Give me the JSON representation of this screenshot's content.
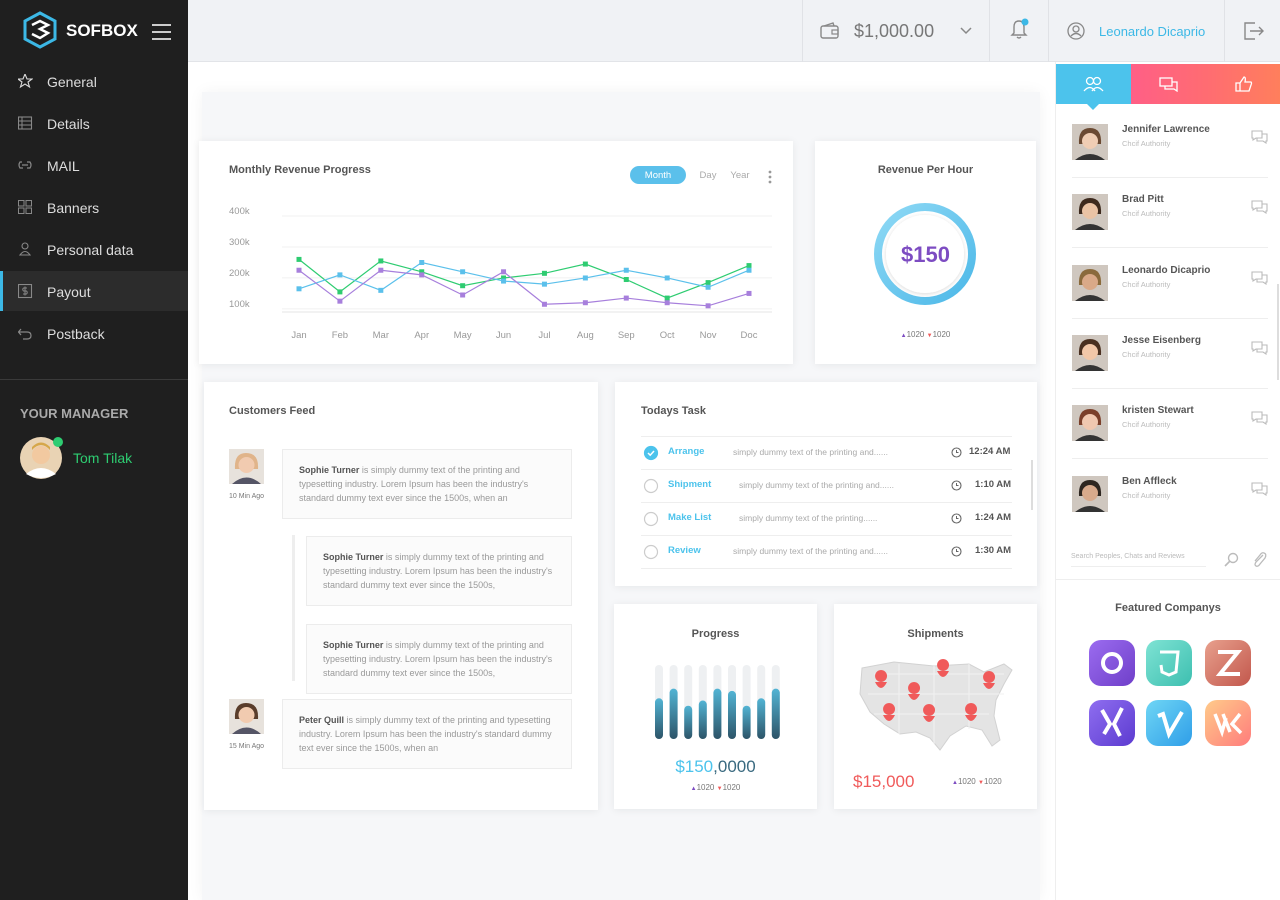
{
  "sidebar": {
    "brand": "SOFBOX",
    "menu": [
      "General",
      "Details",
      "MAIL",
      "Banners",
      "Personal data",
      "Payout",
      "Postback"
    ],
    "manager_heading": "YOUR MANAGER",
    "manager_name": "Tom Tilak"
  },
  "topbar": {
    "balance": "$1,000.00",
    "user": "Leonardo Dicaprio"
  },
  "chart_data": {
    "type": "line",
    "title": "Monthly Revenue Progress",
    "tabs": [
      "Month",
      "Day",
      "Year"
    ],
    "categories": [
      "Jan",
      "Feb",
      "Mar",
      "Apr",
      "May",
      "Jun",
      "Jul",
      "Aug",
      "Sep",
      "Oct",
      "Nov",
      "Doc"
    ],
    "ylim": [
      80000,
      400000
    ],
    "yticks": [
      {
        "value": 100000,
        "label": "100k"
      },
      {
        "value": 200000,
        "label": "200k"
      },
      {
        "value": 300000,
        "label": "300k"
      },
      {
        "value": 400000,
        "label": "400k"
      }
    ],
    "grid": true,
    "series": [
      {
        "color": "#2ecc71",
        "values": [
          250000,
          145000,
          245000,
          210000,
          165000,
          190000,
          205000,
          235000,
          185000,
          125000,
          175000,
          230000
        ]
      },
      {
        "color": "#5bc0eb",
        "values": [
          155000,
          200000,
          150000,
          240000,
          210000,
          180000,
          170000,
          190000,
          215000,
          190000,
          160000,
          215000
        ]
      },
      {
        "color": "#a77fdc",
        "values": [
          215000,
          115000,
          215000,
          200000,
          135000,
          210000,
          105000,
          110000,
          125000,
          110000,
          100000,
          140000
        ]
      }
    ]
  },
  "revenue_per_hour": {
    "title": "Revenue Per Hour",
    "amount": "$150",
    "up": "1020",
    "down": "1020"
  },
  "customers_feed": {
    "title": "Customers Feed",
    "posts": [
      {
        "name": "Sophie Turner",
        "text": "is simply dummy text of the printing and typesetting industry. Lorem Ipsum has been the industry's standard dummy text ever since the 1500s, when an",
        "time": "10 Min Ago",
        "replies": [
          {
            "name": "Sophie Turner",
            "text": "is simply dummy text of the printing and typesetting industry. Lorem Ipsum has been the industry's standard dummy text ever since the 1500s,"
          },
          {
            "name": "Sophie Turner",
            "text": "is simply dummy text of the printing and typesetting industry. Lorem Ipsum has been the industry's standard dummy text ever since the 1500s,"
          }
        ]
      },
      {
        "name": "Peter Quill",
        "text": "is simply dummy text of the printing and typesetting industry. Lorem Ipsum has been the industry's standard dummy text ever since the 1500s, when an",
        "time": "15 Min Ago",
        "replies": []
      }
    ]
  },
  "todays_task": {
    "title": "Todays Task",
    "tasks": [
      {
        "name": "Arrange",
        "text": "simply dummy text of the printing and......",
        "time": "12:24 AM",
        "done": true
      },
      {
        "name": "Shipment",
        "text": "simply dummy text of the printing and......",
        "time": "1:10 AM",
        "done": false
      },
      {
        "name": "Make List",
        "text": "simply dummy text of the printing......",
        "time": "1:24 AM",
        "done": false
      },
      {
        "name": "Review",
        "text": "simply dummy text of the printing and......",
        "time": "1:30 AM",
        "done": false
      }
    ]
  },
  "progress": {
    "title": "Progress",
    "bars": {
      "values": [
        55,
        68,
        45,
        52,
        68,
        65,
        45,
        55,
        68
      ],
      "ylim": [
        0,
        100
      ]
    },
    "amount_main": "$150",
    "amount_rest": ",0000",
    "up": "1020",
    "down": "1020"
  },
  "shipments": {
    "title": "Shipments",
    "amount": "$15,000",
    "up": "1020",
    "down": "1020"
  },
  "contacts": {
    "people": [
      {
        "name": "Jennifer Lawrence",
        "role": "Chcif Authority"
      },
      {
        "name": "Brad Pitt",
        "role": "Chcif Authority"
      },
      {
        "name": "Leonardo Dicaprio",
        "role": "Chcif Authority"
      },
      {
        "name": "Jesse Eisenberg",
        "role": "Chcif Authority"
      },
      {
        "name": "kristen Stewart",
        "role": "Chcif Authority"
      },
      {
        "name": "Ben Affleck",
        "role": "Chcif Authority"
      }
    ],
    "search_placeholder": "Search Peoples, Chats and Reviews",
    "featured_title": "Featured Companys"
  }
}
